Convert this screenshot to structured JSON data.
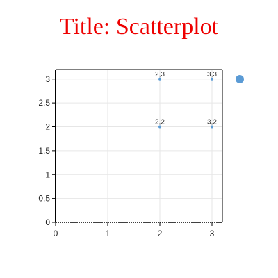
{
  "chart_data": {
    "type": "scatter",
    "title": "Title: Scatterplot",
    "xlabel": "",
    "ylabel": "",
    "xlim": [
      0,
      3.2
    ],
    "ylim": [
      0,
      3.2
    ],
    "x_ticks": [
      0,
      1,
      2,
      3
    ],
    "y_ticks": [
      0,
      0.5,
      1,
      1.5,
      2,
      2.5,
      3
    ],
    "x_tick_labels": [
      "0",
      "1",
      "2",
      "3"
    ],
    "y_tick_labels": [
      "0",
      "0.5",
      "1",
      "1.5",
      "2",
      "2.5",
      "3"
    ],
    "grid": true,
    "legend_position": "top-right",
    "series": [
      {
        "color": "#5b9bd5",
        "points": [
          {
            "x": 2,
            "y": 3,
            "label": "2,3"
          },
          {
            "x": 3,
            "y": 3,
            "label": "3,3"
          },
          {
            "x": 2,
            "y": 2,
            "label": "2,2"
          },
          {
            "x": 3,
            "y": 2,
            "label": "3,2"
          }
        ]
      }
    ]
  },
  "colors": {
    "title": "#ee0000",
    "marker": "#5b9bd5",
    "grid": "#e6e6e6",
    "axis": "#000000"
  }
}
